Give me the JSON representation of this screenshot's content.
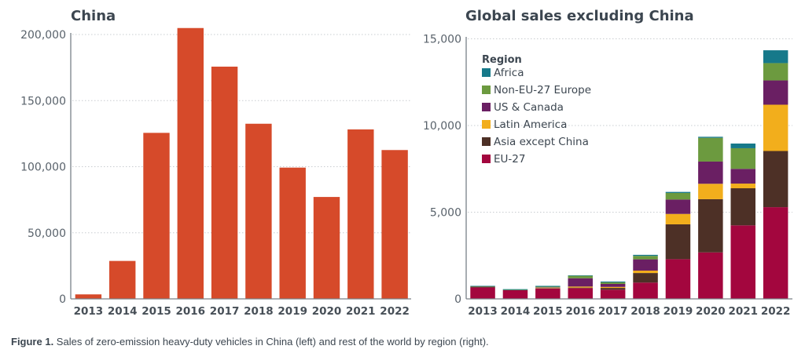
{
  "chart_data": [
    {
      "type": "bar",
      "title": "China",
      "xlabel": "",
      "ylabel": "",
      "categories": [
        "2013",
        "2014",
        "2015",
        "2016",
        "2017",
        "2018",
        "2019",
        "2020",
        "2021",
        "2022"
      ],
      "values": [
        3400,
        28700,
        125600,
        204900,
        175700,
        132500,
        99300,
        77100,
        128200,
        112600
      ],
      "ylim": [
        0,
        200000
      ],
      "yticks": [
        0,
        50000,
        100000,
        150000,
        200000
      ],
      "ytick_labels": [
        "0",
        "50,000",
        "100,000",
        "150,000",
        "200,000"
      ],
      "grid": true,
      "color": "#d64a2a"
    },
    {
      "type": "bar",
      "stacked": true,
      "title": "Global sales excluding China",
      "xlabel": "",
      "ylabel": "",
      "categories": [
        "2013",
        "2014",
        "2015",
        "2016",
        "2017",
        "2018",
        "2019",
        "2020",
        "2021",
        "2022"
      ],
      "ylim": [
        0,
        15000
      ],
      "yticks": [
        0,
        5000,
        10000,
        15000
      ],
      "ytick_labels": [
        "0",
        "5,000",
        "10,000",
        "15,000"
      ],
      "grid": true,
      "legend": {
        "title": "Region",
        "placement": "top-left"
      },
      "series": [
        {
          "name": "EU-27",
          "color": "#a3063e",
          "values": [
            660,
            500,
            600,
            620,
            530,
            940,
            2290,
            2680,
            4240,
            5290
          ]
        },
        {
          "name": "Asia except China",
          "color": "#4d3026",
          "values": [
            40,
            0,
            20,
            30,
            100,
            550,
            2010,
            3070,
            2140,
            3240
          ]
        },
        {
          "name": "Latin America",
          "color": "#f2ae1c",
          "values": [
            0,
            0,
            30,
            60,
            60,
            140,
            600,
            890,
            270,
            2670
          ]
        },
        {
          "name": "US & Canada",
          "color": "#6a1f63",
          "values": [
            0,
            0,
            20,
            480,
            170,
            650,
            830,
            1280,
            850,
            1400
          ]
        },
        {
          "name": "Non-EU-27 Europe",
          "color": "#6c9a3f",
          "values": [
            20,
            20,
            30,
            140,
            90,
            200,
            380,
            1370,
            1190,
            1000
          ]
        },
        {
          "name": "Africa",
          "color": "#16798a",
          "values": [
            30,
            40,
            50,
            30,
            50,
            60,
            60,
            60,
            270,
            740
          ]
        }
      ],
      "legend_order": [
        "Africa",
        "Non-EU-27 Europe",
        "US & Canada",
        "Latin America",
        "Asia except China",
        "EU-27"
      ]
    }
  ],
  "caption": {
    "label": "Figure 1.",
    "text": " Sales of zero-emission heavy-duty vehicles in China (left) and rest of the world by region (right)."
  }
}
